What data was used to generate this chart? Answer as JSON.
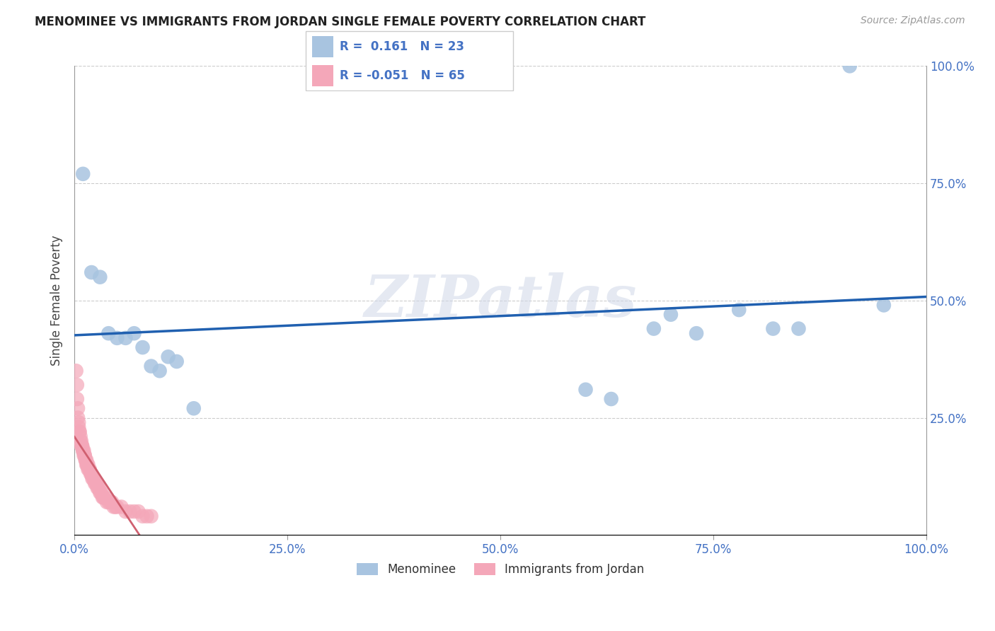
{
  "title": "MENOMINEE VS IMMIGRANTS FROM JORDAN SINGLE FEMALE POVERTY CORRELATION CHART",
  "source": "Source: ZipAtlas.com",
  "ylabel": "Single Female Poverty",
  "xlim": [
    0,
    1
  ],
  "ylim": [
    0,
    1
  ],
  "xtick_positions": [
    0,
    0.25,
    0.5,
    0.75,
    1.0
  ],
  "xtick_labels": [
    "0.0%",
    "25.0%",
    "50.0%",
    "75.0%",
    "100.0%"
  ],
  "ytick_positions": [
    0.25,
    0.5,
    0.75,
    1.0
  ],
  "ytick_labels": [
    "25.0%",
    "50.0%",
    "75.0%",
    "100.0%"
  ],
  "menominee_color": "#a8c4e0",
  "jordan_color": "#f4a7b9",
  "menominee_line_color": "#2060b0",
  "jordan_line_color": "#d06070",
  "grid_color": "#cccccc",
  "menominee_R": 0.161,
  "menominee_N": 23,
  "jordan_R": -0.051,
  "jordan_N": 65,
  "menominee_x": [
    0.01,
    0.02,
    0.03,
    0.04,
    0.05,
    0.06,
    0.07,
    0.08,
    0.09,
    0.1,
    0.11,
    0.12,
    0.14,
    0.6,
    0.63,
    0.68,
    0.7,
    0.73,
    0.78,
    0.82,
    0.85,
    0.91,
    0.95
  ],
  "menominee_y": [
    0.77,
    0.56,
    0.55,
    0.43,
    0.42,
    0.42,
    0.43,
    0.4,
    0.36,
    0.35,
    0.38,
    0.37,
    0.27,
    0.31,
    0.29,
    0.44,
    0.47,
    0.43,
    0.48,
    0.44,
    0.44,
    1.0,
    0.49
  ],
  "jordan_x": [
    0.002,
    0.003,
    0.003,
    0.004,
    0.004,
    0.005,
    0.005,
    0.006,
    0.006,
    0.007,
    0.007,
    0.008,
    0.008,
    0.009,
    0.009,
    0.01,
    0.01,
    0.011,
    0.011,
    0.012,
    0.012,
    0.013,
    0.013,
    0.014,
    0.014,
    0.015,
    0.015,
    0.016,
    0.016,
    0.017,
    0.018,
    0.019,
    0.02,
    0.02,
    0.021,
    0.022,
    0.023,
    0.024,
    0.025,
    0.026,
    0.027,
    0.028,
    0.029,
    0.03,
    0.031,
    0.032,
    0.033,
    0.034,
    0.035,
    0.036,
    0.038,
    0.04,
    0.042,
    0.044,
    0.046,
    0.048,
    0.05,
    0.055,
    0.06,
    0.065,
    0.07,
    0.075,
    0.08,
    0.085,
    0.09
  ],
  "jordan_y": [
    0.35,
    0.32,
    0.29,
    0.27,
    0.25,
    0.24,
    0.23,
    0.22,
    0.22,
    0.21,
    0.2,
    0.2,
    0.19,
    0.19,
    0.19,
    0.18,
    0.18,
    0.18,
    0.17,
    0.17,
    0.17,
    0.16,
    0.16,
    0.16,
    0.15,
    0.15,
    0.15,
    0.15,
    0.14,
    0.14,
    0.14,
    0.13,
    0.13,
    0.13,
    0.12,
    0.12,
    0.12,
    0.11,
    0.11,
    0.11,
    0.1,
    0.1,
    0.1,
    0.09,
    0.09,
    0.09,
    0.08,
    0.08,
    0.08,
    0.08,
    0.07,
    0.07,
    0.07,
    0.07,
    0.06,
    0.06,
    0.06,
    0.06,
    0.05,
    0.05,
    0.05,
    0.05,
    0.04,
    0.04,
    0.04
  ],
  "watermark_text": "ZIPatlas",
  "watermark_color": "#d0d8e8",
  "axis_color": "#4472c4",
  "tick_color": "#999999"
}
